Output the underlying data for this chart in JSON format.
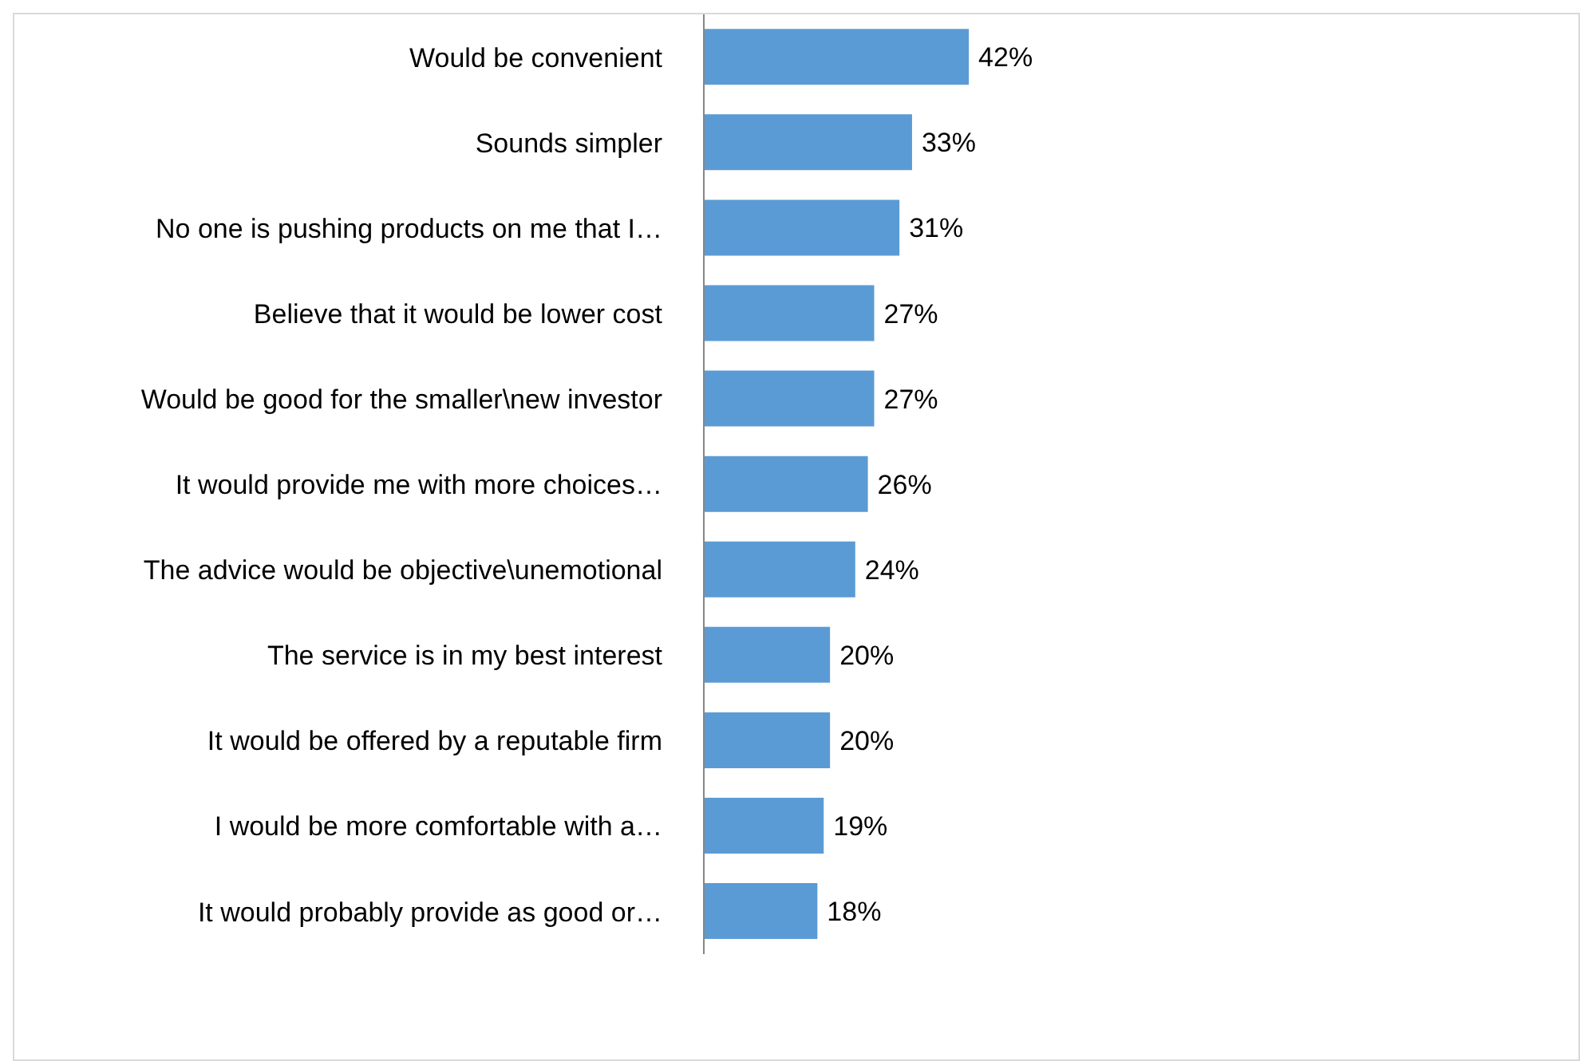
{
  "chart_data": {
    "type": "bar",
    "orientation": "horizontal",
    "categories": [
      "Would be convenient",
      "Sounds simpler",
      "No one is pushing products on me that I…",
      "Believe that it would be lower cost",
      "Would be good for the smaller\\new investor",
      "It would provide me with more choices…",
      "The advice would be objective\\unemotional",
      "The service is in my best interest",
      "It would be offered by a reputable firm",
      "I would be more comfortable with a…",
      "It would probably provide as good or…"
    ],
    "values": [
      42,
      33,
      31,
      27,
      27,
      26,
      24,
      20,
      20,
      19,
      18
    ],
    "value_labels": [
      "42%",
      "33%",
      "31%",
      "27%",
      "27%",
      "26%",
      "24%",
      "20%",
      "20%",
      "19%",
      "18%"
    ],
    "color": "#5b9bd5"
  }
}
